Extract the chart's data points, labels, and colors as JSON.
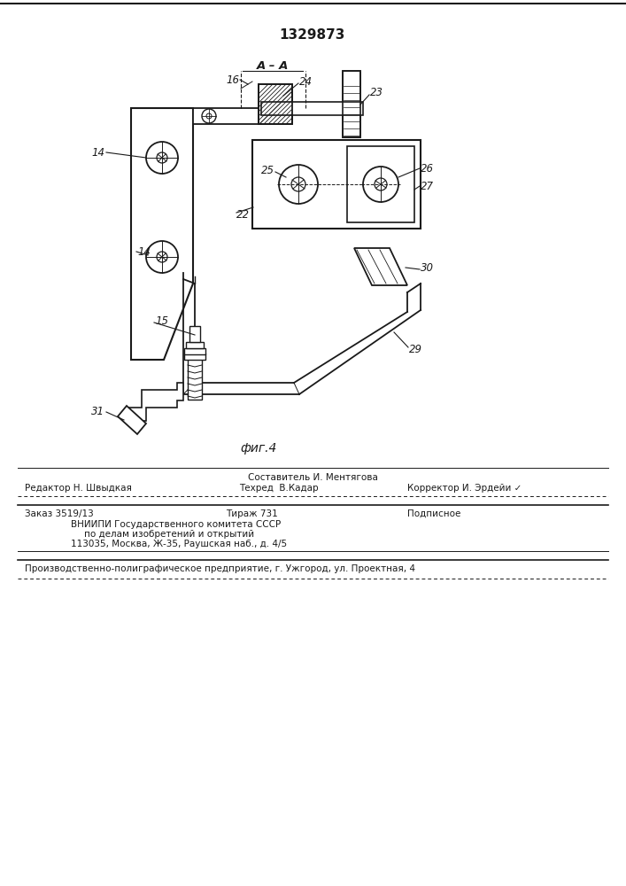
{
  "patent_number": "1329873",
  "fig_label": "фиг.4",
  "section_label": "A – A",
  "bg_color": "#ffffff",
  "line_color": "#1a1a1a",
  "footer_line0_center": "Составитель И. Ментягова",
  "footer_line1_left": "Редактор Н. Швыдкая",
  "footer_line1_center": "Техред  В.Кадар",
  "footer_line1_right": "Корректор И. Эрдейи ✓",
  "footer_line2_col1": "Заказ 3519/13",
  "footer_line2_col2": "Тираж 731",
  "footer_line2_col3": "Подписное",
  "footer_line3": "ВНИИПИ Государственного комитета СССР",
  "footer_line4": "по делам изобретений и открытий",
  "footer_line5": "113035, Москва, Ж-35, Раушская наб., д. 4/5",
  "footer_line6": "Производственно-полиграфическое предприятие, г. Ужгород, ул. Проектная, 4"
}
